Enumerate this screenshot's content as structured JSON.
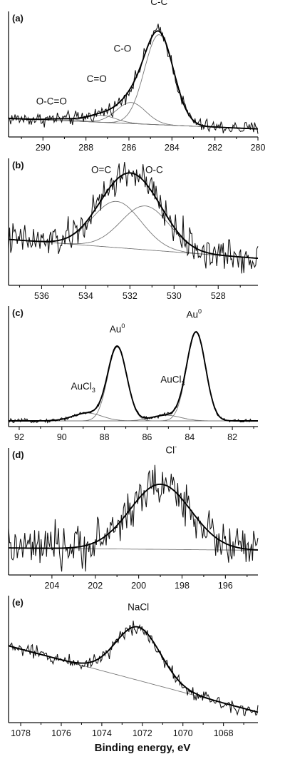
{
  "xlabel": "Binding energy, eV",
  "chart_data": [
    {
      "type": "line",
      "label": "(a)",
      "xlim": [
        291.6,
        280
      ],
      "xticks": [
        290,
        288,
        286,
        284,
        282,
        280
      ],
      "ylim": [
        0,
        1
      ],
      "baseline": [
        [
          291.6,
          0.11
        ],
        [
          280,
          0.02
        ]
      ],
      "noise": 0.03,
      "peaks": [
        {
          "name": "O-C=O",
          "center": 289.0,
          "height": 0.015,
          "fwhm": 1.6
        },
        {
          "name": "C=O",
          "center": 287.3,
          "height": 0.06,
          "fwhm": 1.6
        },
        {
          "name": "C-O",
          "center": 285.9,
          "height": 0.18,
          "fwhm": 1.6
        },
        {
          "name": "C-C",
          "center": 284.6,
          "height": 0.77,
          "fwhm": 1.6
        }
      ],
      "annotations": [
        {
          "text": "C-C",
          "x": 284.6,
          "y": 1.08
        },
        {
          "text": "C-O",
          "x": 286.3,
          "y": 0.68
        },
        {
          "text": "C=O",
          "x": 287.5,
          "y": 0.42
        },
        {
          "text": "O-C=O",
          "x": 289.6,
          "y": 0.23
        }
      ]
    },
    {
      "type": "line",
      "label": "(b)",
      "xlim": [
        537.5,
        526.2
      ],
      "xticks": [
        536,
        534,
        532,
        530,
        528
      ],
      "ylim": [
        0,
        1
      ],
      "baseline": [
        [
          537.5,
          0.34
        ],
        [
          526.2,
          0.18
        ]
      ],
      "noise": 0.07,
      "peaks": [
        {
          "name": "O=C",
          "center": 532.6,
          "height": 0.39,
          "fwhm": 2.6
        },
        {
          "name": "O-C",
          "center": 531.3,
          "height": 0.37,
          "fwhm": 2.6
        }
      ],
      "annotations": [
        {
          "text": "O=C",
          "x": 533.3,
          "y": 0.9
        },
        {
          "text": "O-C",
          "x": 530.9,
          "y": 0.9
        }
      ]
    },
    {
      "type": "line",
      "label": "(c)",
      "xlim": [
        92.5,
        80.8
      ],
      "xticks": [
        92,
        90,
        88,
        86,
        84,
        82
      ],
      "ylim": [
        0,
        1
      ],
      "baseline": [
        [
          92.5,
          0.0
        ],
        [
          80.8,
          0.0
        ]
      ],
      "noise": 0.008,
      "peaks": [
        {
          "name": "AuCl3",
          "center": 88.8,
          "height": 0.07,
          "fwhm": 1.6
        },
        {
          "name": "Au0",
          "center": 87.4,
          "height": 0.66,
          "fwhm": 1.05
        },
        {
          "name": "AuCl3",
          "center": 85.1,
          "height": 0.05,
          "fwhm": 1.6
        },
        {
          "name": "Au0",
          "center": 83.7,
          "height": 0.79,
          "fwhm": 1.05
        }
      ],
      "annotations": [
        {
          "text": "Au",
          "sup": "0",
          "x": 87.4,
          "y": 0.79
        },
        {
          "text": "Au",
          "sup": "0",
          "x": 83.8,
          "y": 0.92
        },
        {
          "text": "AuCl",
          "sub": "3",
          "x": 89.0,
          "y": 0.28
        },
        {
          "text": "AuCl",
          "sub": "3",
          "x": 84.8,
          "y": 0.34
        }
      ]
    },
    {
      "type": "line",
      "label": "(d)",
      "xlim": [
        206,
        194.5
      ],
      "xticks": [
        204,
        202,
        200,
        198,
        196
      ],
      "ylim": [
        0,
        1
      ],
      "baseline": [
        [
          206,
          0.18
        ],
        [
          194.5,
          0.16
        ]
      ],
      "noise": 0.09,
      "peaks": [
        {
          "name": "Cl-",
          "center": 199.0,
          "height": 0.55,
          "fwhm": 3.3
        }
      ],
      "annotations": [
        {
          "text": "Cl",
          "sup": "-",
          "x": 198.5,
          "y": 0.98
        }
      ]
    },
    {
      "type": "line",
      "label": "(e)",
      "xlim": [
        1078.6,
        1066.3
      ],
      "xticks": [
        1078,
        1076,
        1074,
        1072,
        1070,
        1068
      ],
      "ylim": [
        0,
        1
      ],
      "baseline": [
        [
          1078.6,
          0.6
        ],
        [
          1066.3,
          0.04
        ]
      ],
      "noise": 0.03,
      "peaks": [
        {
          "name": "NaCl",
          "center": 1072.2,
          "height": 0.45,
          "fwhm": 2.6
        }
      ],
      "annotations": [
        {
          "text": "NaCl",
          "x": 1072.2,
          "y": 0.9
        }
      ]
    }
  ]
}
